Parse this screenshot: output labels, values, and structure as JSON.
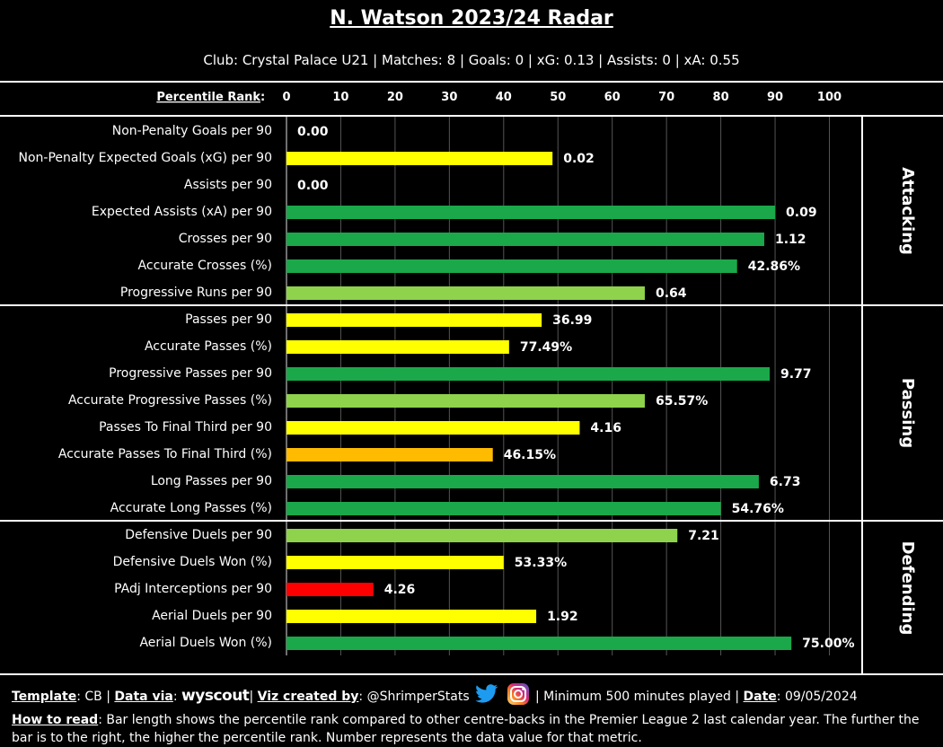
{
  "title": "N. Watson 2023/24 Radar",
  "subtitle": "Club: Crystal Palace U21 | Matches: 8 | Goals: 0 | xG: 0.13 | Assists: 0 | xA: 0.55",
  "footer": {
    "template_label": "Template",
    "template_value": ": CB | ",
    "data_via_label": "Data via",
    "data_via_sep": ": ",
    "data_source": "wyscout",
    "pipe1": "| ",
    "viz_label": "Viz created by",
    "viz_value": ": @ShrimperStats",
    "min_minutes": "| Minimum 500 minutes played | ",
    "date_label": "Date",
    "date_value": ": 09/05/2024",
    "how_label": "How to read",
    "how_text": ": Bar length shows the percentile rank compared to other centre-backs in the Premier League 2 last calendar year. The further the bar is to the right, the higher the percentile rank. Number represents the data value for that metric."
  },
  "chart_data": {
    "type": "bar",
    "orientation": "horizontal",
    "axis_label": "Percentile Rank",
    "xlim": [
      0,
      100
    ],
    "ticks": [
      0,
      10,
      20,
      30,
      40,
      50,
      60,
      70,
      80,
      90,
      100
    ],
    "grid": true,
    "colors": {
      "green": "#1aa84a",
      "light_green": "#8fd24c",
      "yellow": "#ffff00",
      "orange": "#ffbb00",
      "red": "#ff0000"
    },
    "groups": [
      {
        "name": "Attacking",
        "metrics": [
          {
            "label": "Non-Penalty Goals per 90",
            "percentile": 0,
            "value": "0.00",
            "color": "yellow"
          },
          {
            "label": "Non-Penalty Expected Goals (xG) per 90",
            "percentile": 49,
            "value": "0.02",
            "color": "yellow"
          },
          {
            "label": "Assists per 90",
            "percentile": 0,
            "value": "0.00",
            "color": "yellow"
          },
          {
            "label": "Expected Assists (xA) per 90",
            "percentile": 90,
            "value": "0.09",
            "color": "green"
          },
          {
            "label": "Crosses per 90",
            "percentile": 88,
            "value": "1.12",
            "color": "green"
          },
          {
            "label": "Accurate Crosses (%)",
            "percentile": 83,
            "value": "42.86%",
            "color": "green"
          },
          {
            "label": "Progressive Runs per 90",
            "percentile": 66,
            "value": "0.64",
            "color": "light_green"
          }
        ]
      },
      {
        "name": "Passing",
        "metrics": [
          {
            "label": "Passes per 90",
            "percentile": 47,
            "value": "36.99",
            "color": "yellow"
          },
          {
            "label": "Accurate Passes (%)",
            "percentile": 41,
            "value": "77.49%",
            "color": "yellow"
          },
          {
            "label": "Progressive Passes per 90",
            "percentile": 89,
            "value": "9.77",
            "color": "green"
          },
          {
            "label": "Accurate Progressive Passes (%)",
            "percentile": 66,
            "value": "65.57%",
            "color": "light_green"
          },
          {
            "label": "Passes To Final Third per 90",
            "percentile": 54,
            "value": "4.16",
            "color": "yellow"
          },
          {
            "label": "Accurate Passes To Final Third (%)",
            "percentile": 38,
            "value": "46.15%",
            "color": "orange"
          },
          {
            "label": "Long Passes per 90",
            "percentile": 87,
            "value": "6.73",
            "color": "green"
          },
          {
            "label": "Accurate Long Passes (%)",
            "percentile": 80,
            "value": "54.76%",
            "color": "green"
          }
        ]
      },
      {
        "name": "Defending",
        "metrics": [
          {
            "label": "Defensive Duels per 90",
            "percentile": 72,
            "value": "7.21",
            "color": "light_green"
          },
          {
            "label": "Defensive Duels Won (%)",
            "percentile": 40,
            "value": "53.33%",
            "color": "yellow"
          },
          {
            "label": "PAdj Interceptions per 90",
            "percentile": 16,
            "value": "4.26",
            "color": "red"
          },
          {
            "label": "Aerial Duels per 90",
            "percentile": 46,
            "value": "1.92",
            "color": "yellow"
          },
          {
            "label": "Aerial Duels Won (%)",
            "percentile": 93,
            "value": "75.00%",
            "color": "green"
          }
        ]
      }
    ]
  }
}
